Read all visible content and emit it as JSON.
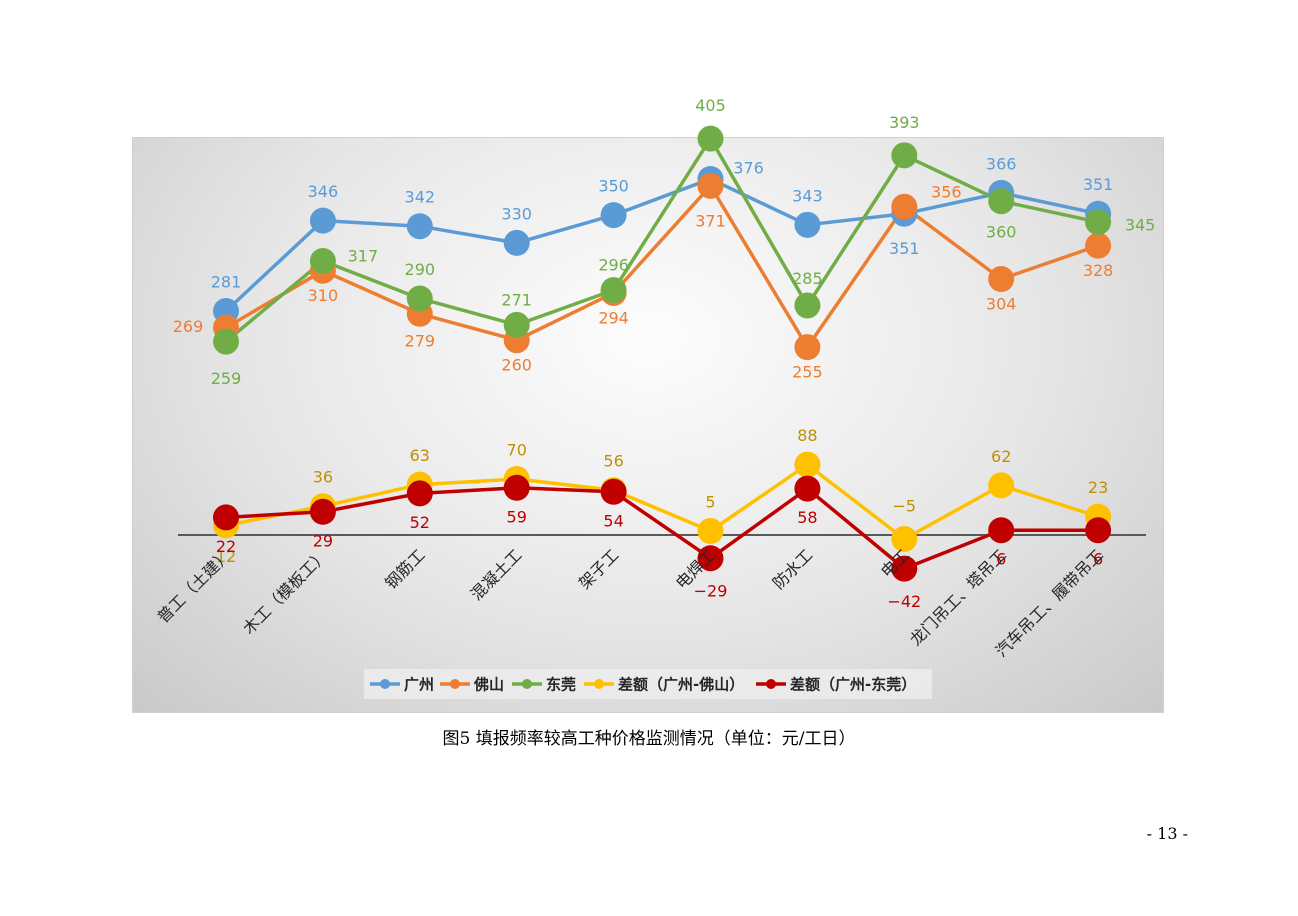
{
  "caption": "图5  填报频率较高工种价格监测情况（单位：元/工日）",
  "page_number": "- 13 -",
  "chart_data": {
    "type": "line",
    "title": "",
    "categories": [
      "普工（土建）",
      "木工（模板工）",
      "钢筋工",
      "混凝土工",
      "架子工",
      "电焊工",
      "防水工",
      "电工",
      "龙门吊工、塔吊工",
      "汽车吊工、履带吊工"
    ],
    "series": [
      {
        "name": "广州",
        "color": "#5B9BD5",
        "values": [
          281,
          346,
          342,
          330,
          350,
          376,
          343,
          351,
          366,
          351
        ]
      },
      {
        "name": "佛山",
        "color": "#ED7D31",
        "values": [
          269,
          310,
          279,
          260,
          294,
          371,
          255,
          356,
          304,
          328
        ]
      },
      {
        "name": "东莞",
        "color": "#70AD47",
        "values": [
          259,
          317,
          290,
          271,
          296,
          405,
          285,
          393,
          360,
          345
        ]
      },
      {
        "name": "差额（广州-佛山）",
        "color": "#FFC000",
        "label_color": "#BF9000",
        "values": [
          12,
          36,
          63,
          70,
          56,
          5,
          88,
          -5,
          62,
          23
        ]
      },
      {
        "name": "差额（广州-东莞）",
        "color": "#C00000",
        "values": [
          22,
          29,
          52,
          59,
          54,
          -29,
          58,
          -42,
          6,
          6
        ]
      }
    ],
    "legend": "bottom",
    "grid": false
  }
}
